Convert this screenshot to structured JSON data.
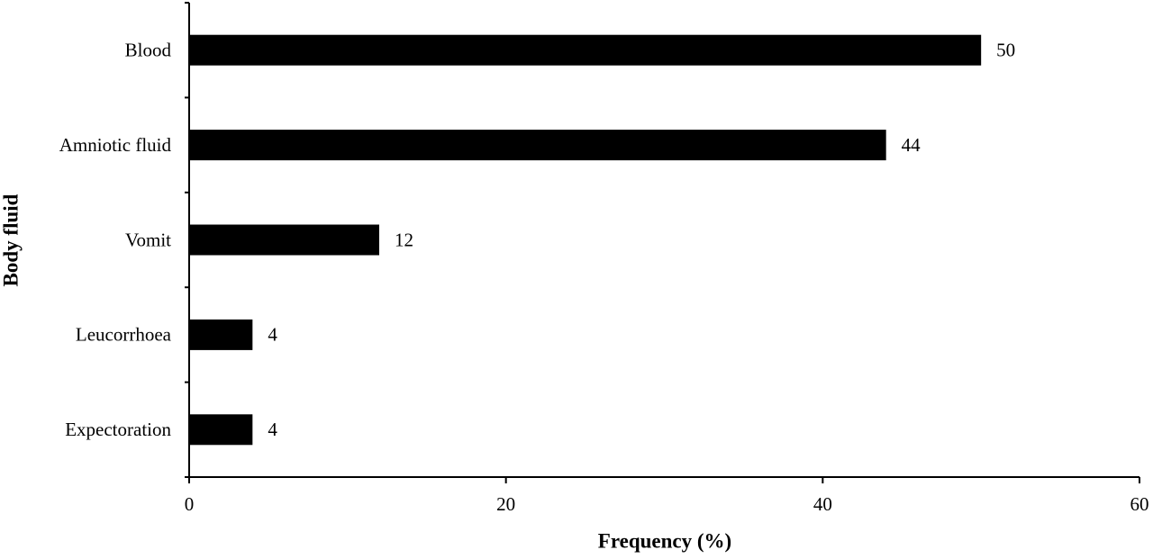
{
  "chart_data": {
    "type": "hbar",
    "x_label": "Frequency (%)",
    "y_label": "Body fluid",
    "categories": [
      "Blood",
      "Amniotic fluid",
      "Vomit",
      "Leucorrhoea",
      "Expectoration"
    ],
    "values": [
      50,
      44,
      12,
      4,
      4
    ],
    "color": "#000000",
    "xlim": [
      0,
      60
    ],
    "xticks": [
      0,
      20,
      40,
      60
    ],
    "grid": false
  }
}
